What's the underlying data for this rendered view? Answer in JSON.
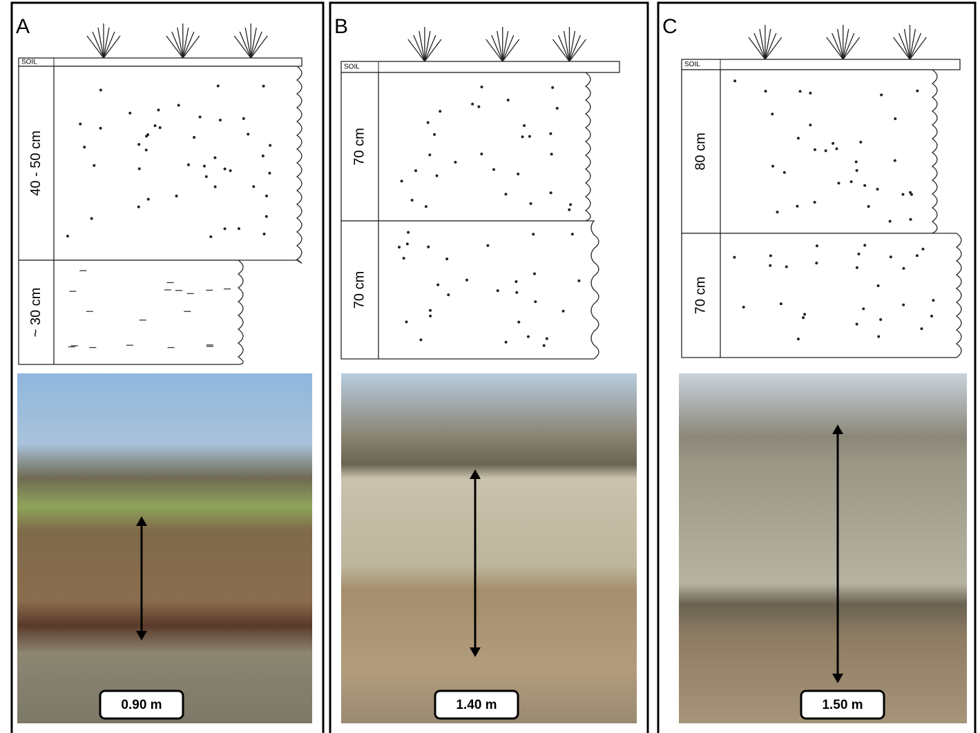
{
  "panels": [
    {
      "label": "A",
      "soil": "SOIL",
      "layers": [
        "40 - 50 cm",
        "~ 30 cm"
      ],
      "height": "0.90 m"
    },
    {
      "label": "B",
      "soil": "SOIL",
      "layers": [
        "70 cm",
        "70 cm"
      ],
      "height": "1.40 m"
    },
    {
      "label": "C",
      "soil": "SOIL",
      "layers": [
        "80 cm",
        "70 cm"
      ],
      "height": "1.50 m"
    }
  ]
}
